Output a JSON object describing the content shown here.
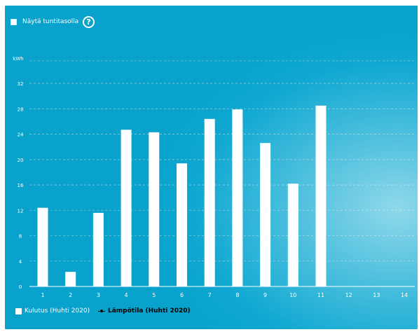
{
  "toggle": {
    "label": "Näytä tuntitasolla",
    "checked": false
  },
  "help": {
    "glyph": "?"
  },
  "chart_data": {
    "type": "bar",
    "unit_label": "kWh",
    "categories": [
      "1",
      "2",
      "3",
      "4",
      "5",
      "6",
      "7",
      "8",
      "9",
      "10",
      "11",
      "12",
      "13",
      "14"
    ],
    "series": [
      {
        "name": "Kulutus (Huhti 2020)",
        "values": [
          12.4,
          2.3,
          11.6,
          24.7,
          24.3,
          19.4,
          26.4,
          27.9,
          22.6,
          16.2,
          28.5,
          null,
          null,
          null
        ]
      }
    ],
    "yticks": [
      0,
      4,
      8,
      12,
      16,
      20,
      24,
      28,
      32
    ],
    "ylim": [
      0,
      36
    ],
    "grid": true,
    "legend_position": "bottom-left"
  },
  "legend": [
    {
      "label": "Kulutus (Huhti 2020)",
      "kind": "bar"
    },
    {
      "label": "Lämpötila (Huhti 2020)",
      "kind": "line"
    }
  ],
  "colors": {
    "background": "#08a2cc",
    "bar": "#ffffff",
    "temperature_line": "#000000"
  }
}
